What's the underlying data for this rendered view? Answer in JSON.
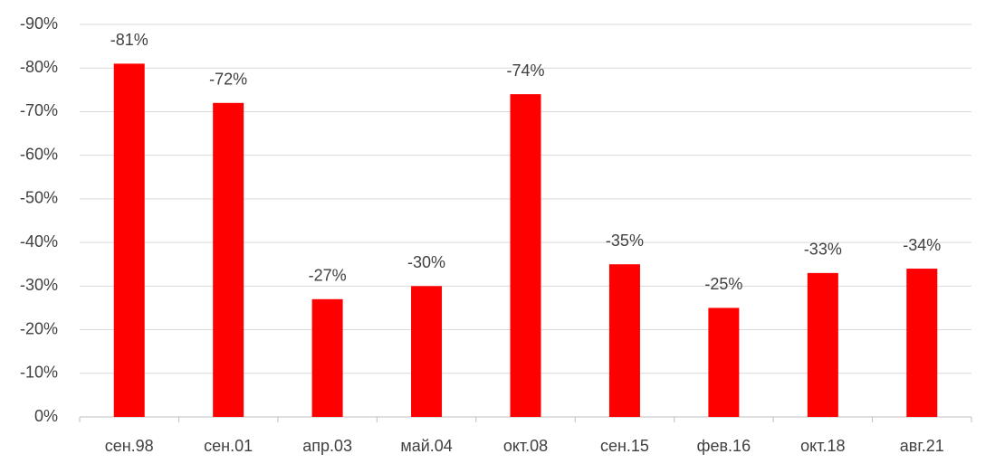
{
  "chart_data": {
    "type": "bar",
    "categories": [
      "сен.98",
      "сен.01",
      "апр.03",
      "май.04",
      "окт.08",
      "сен.15",
      "фев.16",
      "окт.18",
      "авг.21"
    ],
    "values": [
      -81,
      -72,
      -27,
      -30,
      -74,
      -35,
      -25,
      -33,
      -34
    ],
    "value_labels": [
      "-81%",
      "-72%",
      "-27%",
      "-30%",
      "-74%",
      "-35%",
      "-25%",
      "-33%",
      "-34%"
    ],
    "color": "#ff0000",
    "ylim": [
      0,
      -90
    ],
    "yticks": [
      {
        "value": 0,
        "label": "0%"
      },
      {
        "value": -10,
        "label": "-10%"
      },
      {
        "value": -20,
        "label": "-20%"
      },
      {
        "value": -30,
        "label": "-30%"
      },
      {
        "value": -40,
        "label": "-40%"
      },
      {
        "value": -50,
        "label": "-50%"
      },
      {
        "value": -60,
        "label": "-60%"
      },
      {
        "value": -70,
        "label": "-70%"
      },
      {
        "value": -80,
        "label": "-80%"
      },
      {
        "value": -90,
        "label": "-90%"
      }
    ],
    "grid": true
  }
}
